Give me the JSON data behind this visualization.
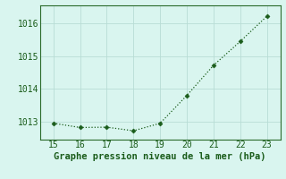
{
  "x": [
    15,
    16,
    17,
    18,
    19,
    20,
    21,
    22,
    23
  ],
  "y": [
    1012.95,
    1012.82,
    1012.83,
    1012.72,
    1012.95,
    1013.8,
    1014.72,
    1015.45,
    1016.22
  ],
  "line_color": "#1a5c1a",
  "marker_color": "#1a5c1a",
  "bg_color": "#d9f5ef",
  "grid_color": "#b8ddd5",
  "xlabel": "Graphe pression niveau de la mer (hPa)",
  "xlabel_color": "#1a5c1a",
  "xlim": [
    14.5,
    23.5
  ],
  "ylim": [
    1012.45,
    1016.55
  ],
  "yticks": [
    1013,
    1014,
    1015,
    1016
  ],
  "xticks": [
    15,
    16,
    17,
    18,
    19,
    20,
    21,
    22,
    23
  ],
  "tick_color": "#1a5c1a",
  "spine_color": "#2a6a2a",
  "tick_fontsize": 7,
  "label_fontsize": 7.5
}
